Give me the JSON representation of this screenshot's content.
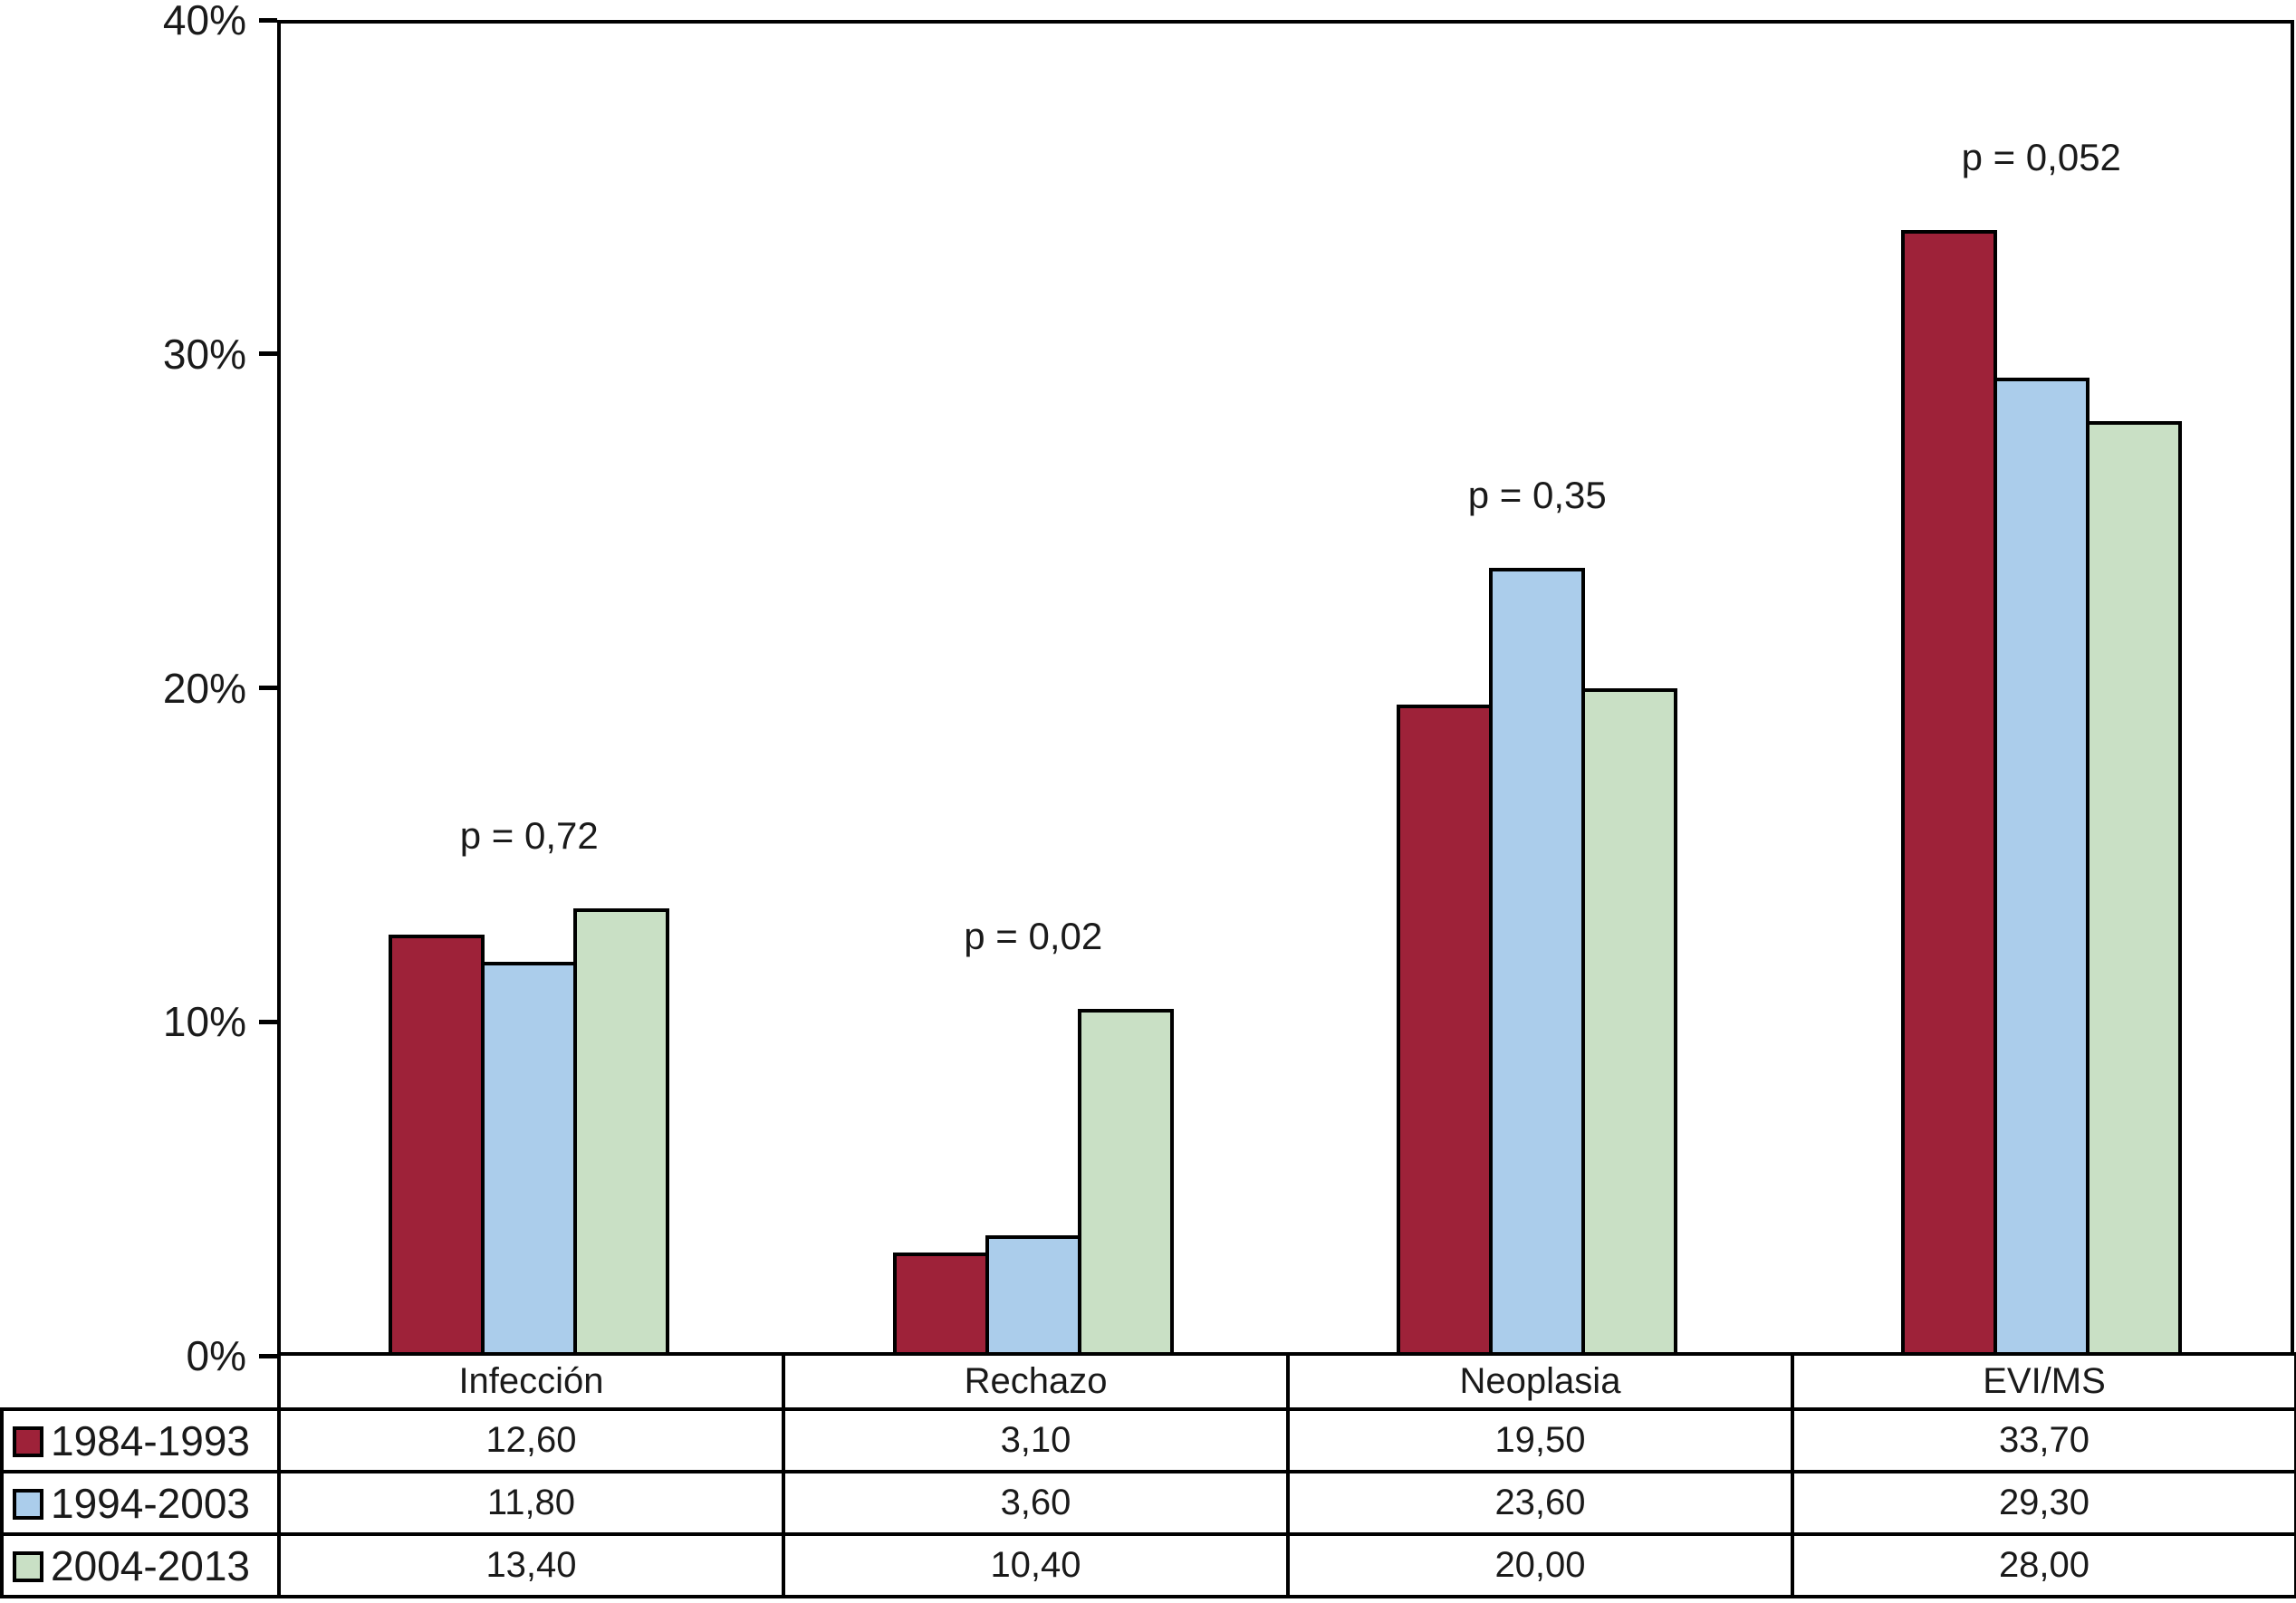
{
  "chart_data": {
    "type": "bar",
    "title": "",
    "categories": [
      "Infección",
      "Rechazo",
      "Neoplasia",
      "EVI/MS"
    ],
    "series": [
      {
        "name": "1984-1993",
        "color": "#9E2239",
        "values": [
          12.6,
          3.1,
          19.5,
          33.7
        ],
        "display_values": [
          "12,60",
          "3,10",
          "19,50",
          "33,70"
        ]
      },
      {
        "name": "1994-2003",
        "color": "#ABCDEB",
        "values": [
          11.8,
          3.6,
          23.6,
          29.3
        ],
        "display_values": [
          "11,80",
          "3,60",
          "23,60",
          "29,30"
        ]
      },
      {
        "name": "2004-2013",
        "color": "#C9E0C5",
        "values": [
          13.4,
          10.4,
          20.0,
          28.0
        ],
        "display_values": [
          "13,40",
          "10,40",
          "20,00",
          "28,00"
        ]
      }
    ],
    "annotations": [
      {
        "category": "Infección",
        "label": "p = 0,72"
      },
      {
        "category": "Rechazo",
        "label": "p = 0,02"
      },
      {
        "category": "Neoplasia",
        "label": "p = 0,35"
      },
      {
        "category": "EVI/MS",
        "label": "p = 0,052"
      }
    ],
    "y_axis": {
      "min": 0,
      "max": 40,
      "ticks": [
        "0%",
        "10%",
        "20%",
        "30%",
        "40%"
      ]
    },
    "grid": false,
    "legend_position": "left-of-table-rows",
    "bar_border_color": "#000000",
    "axis_color": "#000000",
    "text_color": "#1a1a1a"
  }
}
